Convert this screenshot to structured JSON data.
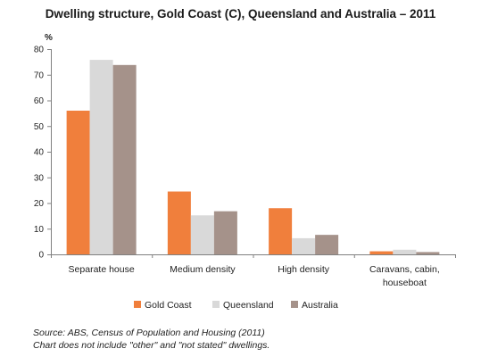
{
  "chart_data": {
    "type": "bar",
    "title": "Dwelling structure, Gold Coast (C), Queensland and Australia – 2011",
    "ylabel": "%",
    "xlabel": "",
    "ylim": [
      0,
      80
    ],
    "yticks": [
      0,
      10,
      20,
      30,
      40,
      50,
      60,
      70,
      80
    ],
    "grid": false,
    "legend_position": "bottom",
    "categories": [
      [
        "Separate house"
      ],
      [
        "Medium density"
      ],
      [
        "High density"
      ],
      [
        "Caravans, cabin,",
        "houseboat"
      ]
    ],
    "series": [
      {
        "name": "Gold Coast",
        "color": "#f07f3c",
        "values": [
          56,
          24.5,
          18,
          1.2
        ]
      },
      {
        "name": "Queensland",
        "color": "#d9d9d9",
        "values": [
          75.8,
          15.2,
          6.3,
          1.8
        ]
      },
      {
        "name": "Australia",
        "color": "#a5928a",
        "values": [
          73.8,
          16.8,
          7.6,
          0.9
        ]
      }
    ]
  },
  "source": {
    "line1": "Source:  ABS, Census of Population and Housing (2011)",
    "line2": "Chart does not include \"other\" and \"not stated\" dwellings."
  }
}
